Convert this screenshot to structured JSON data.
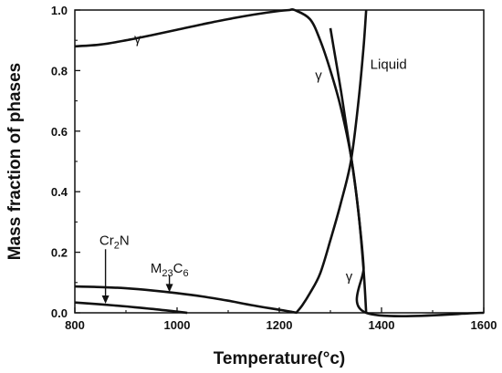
{
  "chart_data": {
    "type": "line",
    "title": "",
    "xlabel": "Temperature(°c)",
    "ylabel": "Mass fraction of phases",
    "xlim": [
      800,
      1600
    ],
    "ylim": [
      0,
      1.0
    ],
    "xticks": [
      "800",
      "1000",
      "1200",
      "1400",
      "1600"
    ],
    "yticks": [
      "0.0",
      "0.2",
      "0.4",
      "0.6",
      "0.8",
      "1.0"
    ],
    "grid": false,
    "legend": "none",
    "series": [
      {
        "x": [
          800,
          850,
          900,
          950,
          1000,
          1050,
          1100,
          1150,
          1200,
          1220,
          1230,
          1260,
          1280,
          1300,
          1320,
          1340,
          1355,
          1365,
          1370
        ],
        "y": [
          0.88,
          0.886,
          0.9,
          0.917,
          0.935,
          0.953,
          0.97,
          0.985,
          0.997,
          1.0,
          1.0,
          0.97,
          0.9,
          0.8,
          0.68,
          0.52,
          0.33,
          0.14,
          0.0
        ]
      },
      {
        "x": [
          1233,
          1245,
          1260,
          1280,
          1300,
          1320,
          1340,
          1355,
          1365,
          1370
        ],
        "y": [
          0.0,
          0.025,
          0.065,
          0.13,
          0.24,
          0.36,
          0.5,
          0.7,
          0.88,
          1.0
        ]
      },
      {
        "x": [
          1300,
          1310,
          1320,
          1330,
          1340,
          1350,
          1360,
          1365,
          1370,
          1600
        ],
        "y": [
          0.94,
          0.84,
          0.74,
          0.63,
          0.52,
          0.4,
          0.25,
          0.15,
          0.0,
          0.0
        ]
      },
      {
        "x": [
          800,
          850,
          900,
          950,
          1000,
          1050,
          1100,
          1150,
          1200,
          1225,
          1235
        ],
        "y": [
          0.087,
          0.085,
          0.081,
          0.074,
          0.065,
          0.054,
          0.04,
          0.024,
          0.01,
          0.003,
          0.0
        ]
      },
      {
        "x": [
          800,
          850,
          900,
          950,
          1000,
          1020
        ],
        "y": [
          0.034,
          0.028,
          0.021,
          0.013,
          0.004,
          0.0
        ]
      }
    ],
    "annotations": [
      {
        "text": "γ",
        "x": 916,
        "y": 0.89
      },
      {
        "text": "γ",
        "x": 1270,
        "y": 0.77
      },
      {
        "text": "Liquid",
        "x": 1378,
        "y": 0.805
      },
      {
        "text": "γ",
        "x": 1330,
        "y": 0.105
      },
      {
        "text": "Cr",
        "sub": "2",
        "after": "N",
        "x": 848,
        "y": 0.225
      },
      {
        "text": "M",
        "sub": "23",
        "after": "C",
        "sub2": "6",
        "x": 948,
        "y": 0.132
      }
    ],
    "arrows": [
      {
        "label": "Cr2N",
        "from": [
          860,
          0.21
        ],
        "to": [
          860,
          0.03
        ]
      },
      {
        "label": "M23C6",
        "from": [
          985,
          0.125
        ],
        "to": [
          985,
          0.068
        ]
      }
    ]
  }
}
